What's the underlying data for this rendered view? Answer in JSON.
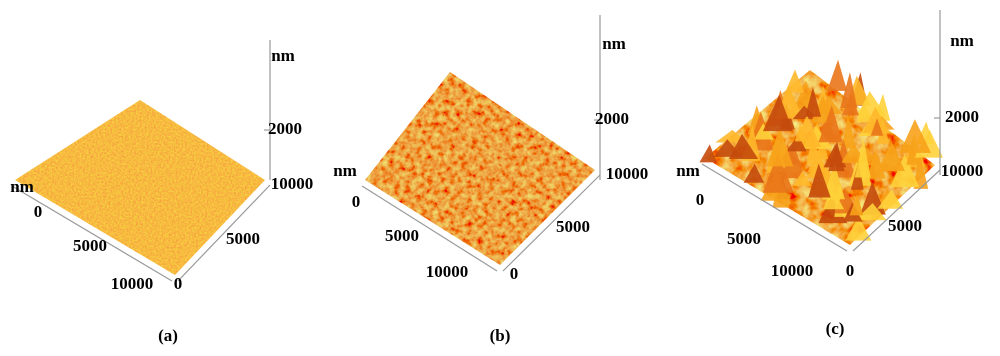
{
  "panels": [
    {
      "caption": "(a)",
      "z_unit": "nm",
      "z_tick": 2000,
      "left_unit": "nm",
      "left_ticks": [
        0,
        5000,
        10000
      ],
      "right_ticks": [
        10000,
        5000,
        0
      ]
    },
    {
      "caption": "(b)",
      "z_unit": "nm",
      "z_tick": 2000,
      "left_unit": "nm",
      "left_ticks": [
        0,
        5000,
        10000
      ],
      "right_ticks": [
        10000,
        5000,
        0
      ]
    },
    {
      "caption": "(c)",
      "z_unit": "nm",
      "z_tick": 2000,
      "left_unit": "nm",
      "left_ticks": [
        0,
        5000,
        10000
      ],
      "right_ticks": [
        10000,
        5000,
        0
      ]
    }
  ]
}
